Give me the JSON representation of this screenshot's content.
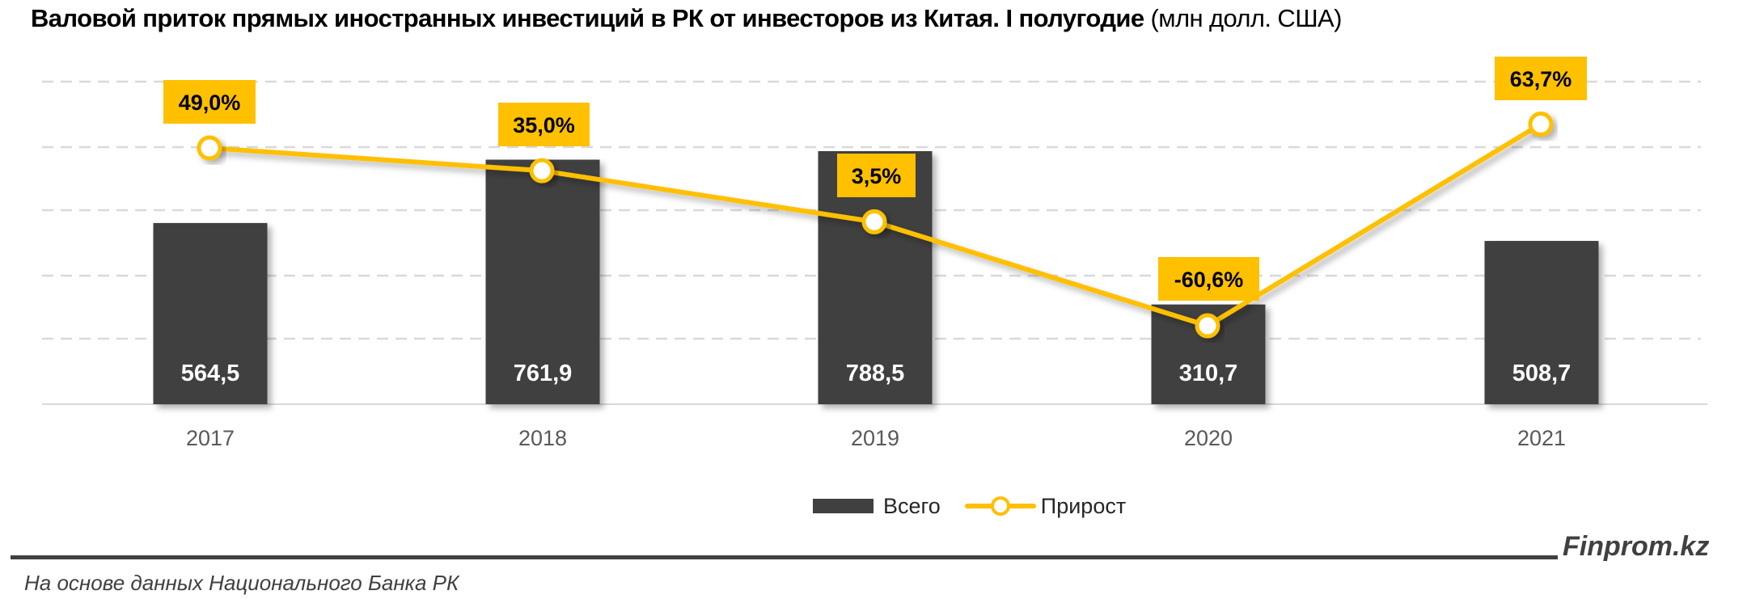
{
  "title": {
    "main": "Валовой приток прямых иностранных инвестиций в РК от инвесторов из Китая. I полугодие",
    "unit": "(млн долл. США)"
  },
  "colors": {
    "bar": "#404040",
    "line": "#FFC000",
    "label_box": "#FFC000",
    "grid": "#D9D9D9",
    "axis_text": "#595959"
  },
  "legend": {
    "bar_label": "Всего",
    "line_label": "Прирост"
  },
  "footer": {
    "source": "На основе данных Национального Банка РК",
    "brand": "Finprom.kz"
  },
  "chart_data": {
    "type": "bar+line",
    "title": "Валовой приток прямых иностранных инвестиций в РК от инвесторов из Китая. I полугодие (млн долл. США)",
    "categories": [
      "2017",
      "2018",
      "2019",
      "2020",
      "2021"
    ],
    "series": [
      {
        "name": "Всего",
        "type": "bar",
        "axis": "primary",
        "values": [
          564.5,
          761.9,
          788.5,
          310.7,
          508.7
        ],
        "labels": [
          "564,5",
          "761,9",
          "788,5",
          "310,7",
          "508,7"
        ]
      },
      {
        "name": "Прирост",
        "type": "line",
        "axis": "secondary",
        "unit": "%",
        "values": [
          49.0,
          35.0,
          3.5,
          -60.6,
          63.7
        ],
        "labels": [
          "49,0%",
          "35,0%",
          "3,5%",
          "-60,6%",
          "63,7%"
        ]
      }
    ],
    "xlabel": "",
    "ylabel": "",
    "ylim": [
      0,
      1000
    ],
    "grid": true,
    "legend_position": "bottom"
  }
}
